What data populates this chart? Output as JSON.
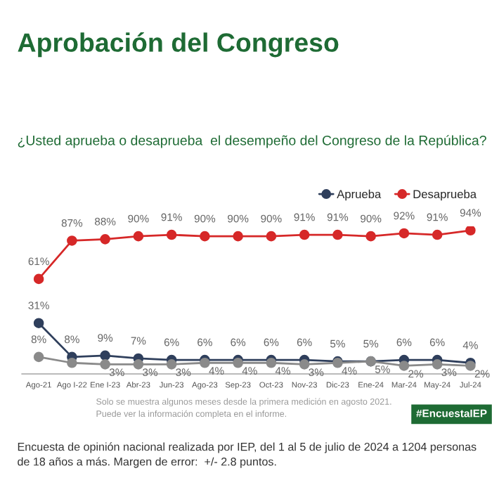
{
  "chart_data": {
    "type": "line",
    "title": "Aprobación del Congreso",
    "subtitle": "¿Usted aprueba o desaprueba  el desempeño del Congreso de la República?",
    "categories": [
      "Ago-21",
      "Ago I-22",
      "Ene I-23",
      "Abr-23",
      "Jun-23",
      "Ago-23",
      "Sep-23",
      "Oct-23",
      "Nov-23",
      "Dic-23",
      "Ene-24",
      "Mar-24",
      "May-24",
      "Jul-24"
    ],
    "series": [
      {
        "name": "Aprueba",
        "color": "#2f3f5c",
        "values": [
          31,
          8,
          9,
          7,
          6,
          6,
          6,
          6,
          6,
          5,
          5,
          6,
          6,
          4
        ],
        "value_labels": [
          "31%",
          "8%",
          "9%",
          "7%",
          "6%",
          "6%",
          "6%",
          "6%",
          "6%",
          "5%",
          "5%",
          "6%",
          "6%",
          "4%"
        ]
      },
      {
        "name": "Desaprueba",
        "color": "#d62828",
        "values": [
          61,
          87,
          88,
          90,
          91,
          90,
          90,
          90,
          91,
          91,
          90,
          92,
          91,
          94
        ],
        "value_labels": [
          "61%",
          "87%",
          "88%",
          "90%",
          "91%",
          "90%",
          "90%",
          "90%",
          "91%",
          "91%",
          "90%",
          "92%",
          "91%",
          "94%"
        ]
      },
      {
        "color": "#8a8a8a",
        "values": [
          8,
          4,
          3,
          3,
          3,
          4,
          4,
          4,
          3,
          4,
          5,
          2,
          3,
          2
        ],
        "value_labels": [
          "8%",
          null,
          "3%",
          "3%",
          "3%",
          "4%",
          "4%",
          "4%",
          "3%",
          "4%",
          "5%",
          "2%",
          "3%",
          "2%"
        ]
      }
    ],
    "marker": "circle",
    "legend": "top right",
    "grid": false,
    "annotations": [
      "Solo se muestra algunos meses desde la primera medición en agosto 2021.\nPuede ver la información completa en el informe.",
      "#EncuestaIEP",
      "Encuesta de opinión nacional realizada por IEP, del 1 al 5 de julio de 2024 a 1204 personas de 18 años a más. Margen de error:  +/- 2.8 puntos."
    ]
  }
}
